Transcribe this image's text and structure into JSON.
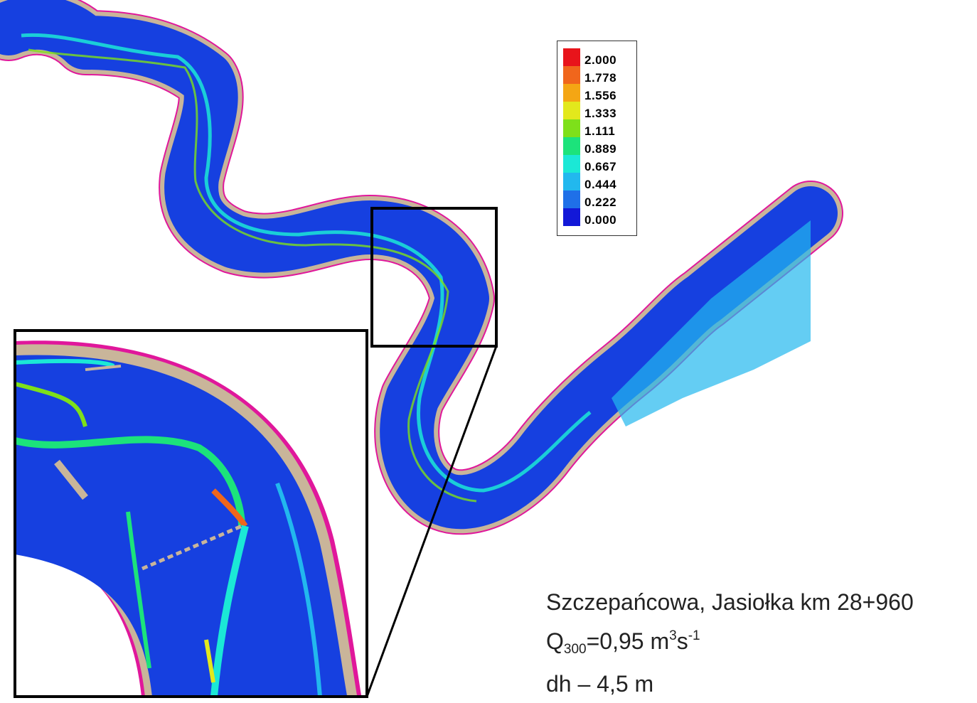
{
  "legend": {
    "items": [
      {
        "label": "2.000",
        "color": "#e8141b"
      },
      {
        "label": "1.778",
        "color": "#f0661c"
      },
      {
        "label": "1.556",
        "color": "#f4a614"
      },
      {
        "label": "1.333",
        "color": "#e3e81c"
      },
      {
        "label": "1.111",
        "color": "#7ee01a"
      },
      {
        "label": "0.889",
        "color": "#1ce37b"
      },
      {
        "label": "0.667",
        "color": "#1be8d6"
      },
      {
        "label": "0.444",
        "color": "#22b8ee"
      },
      {
        "label": "0.222",
        "color": "#1f70e8"
      },
      {
        "label": "0.000",
        "color": "#1218d8"
      }
    ]
  },
  "caption": {
    "location": "Szczepańcowa, Jasiołka km 28+960",
    "q_symbol": "Q",
    "q_sub": "300",
    "q_value": "=0,95 m",
    "q_sup1": "3",
    "q_unit": "s",
    "q_sup2": "-1",
    "dh": "dh – 4,5 m"
  },
  "colors": {
    "water": "#1640e0",
    "bank": "#c9b59a",
    "outline": "#e0179b",
    "frame": "#000000"
  }
}
